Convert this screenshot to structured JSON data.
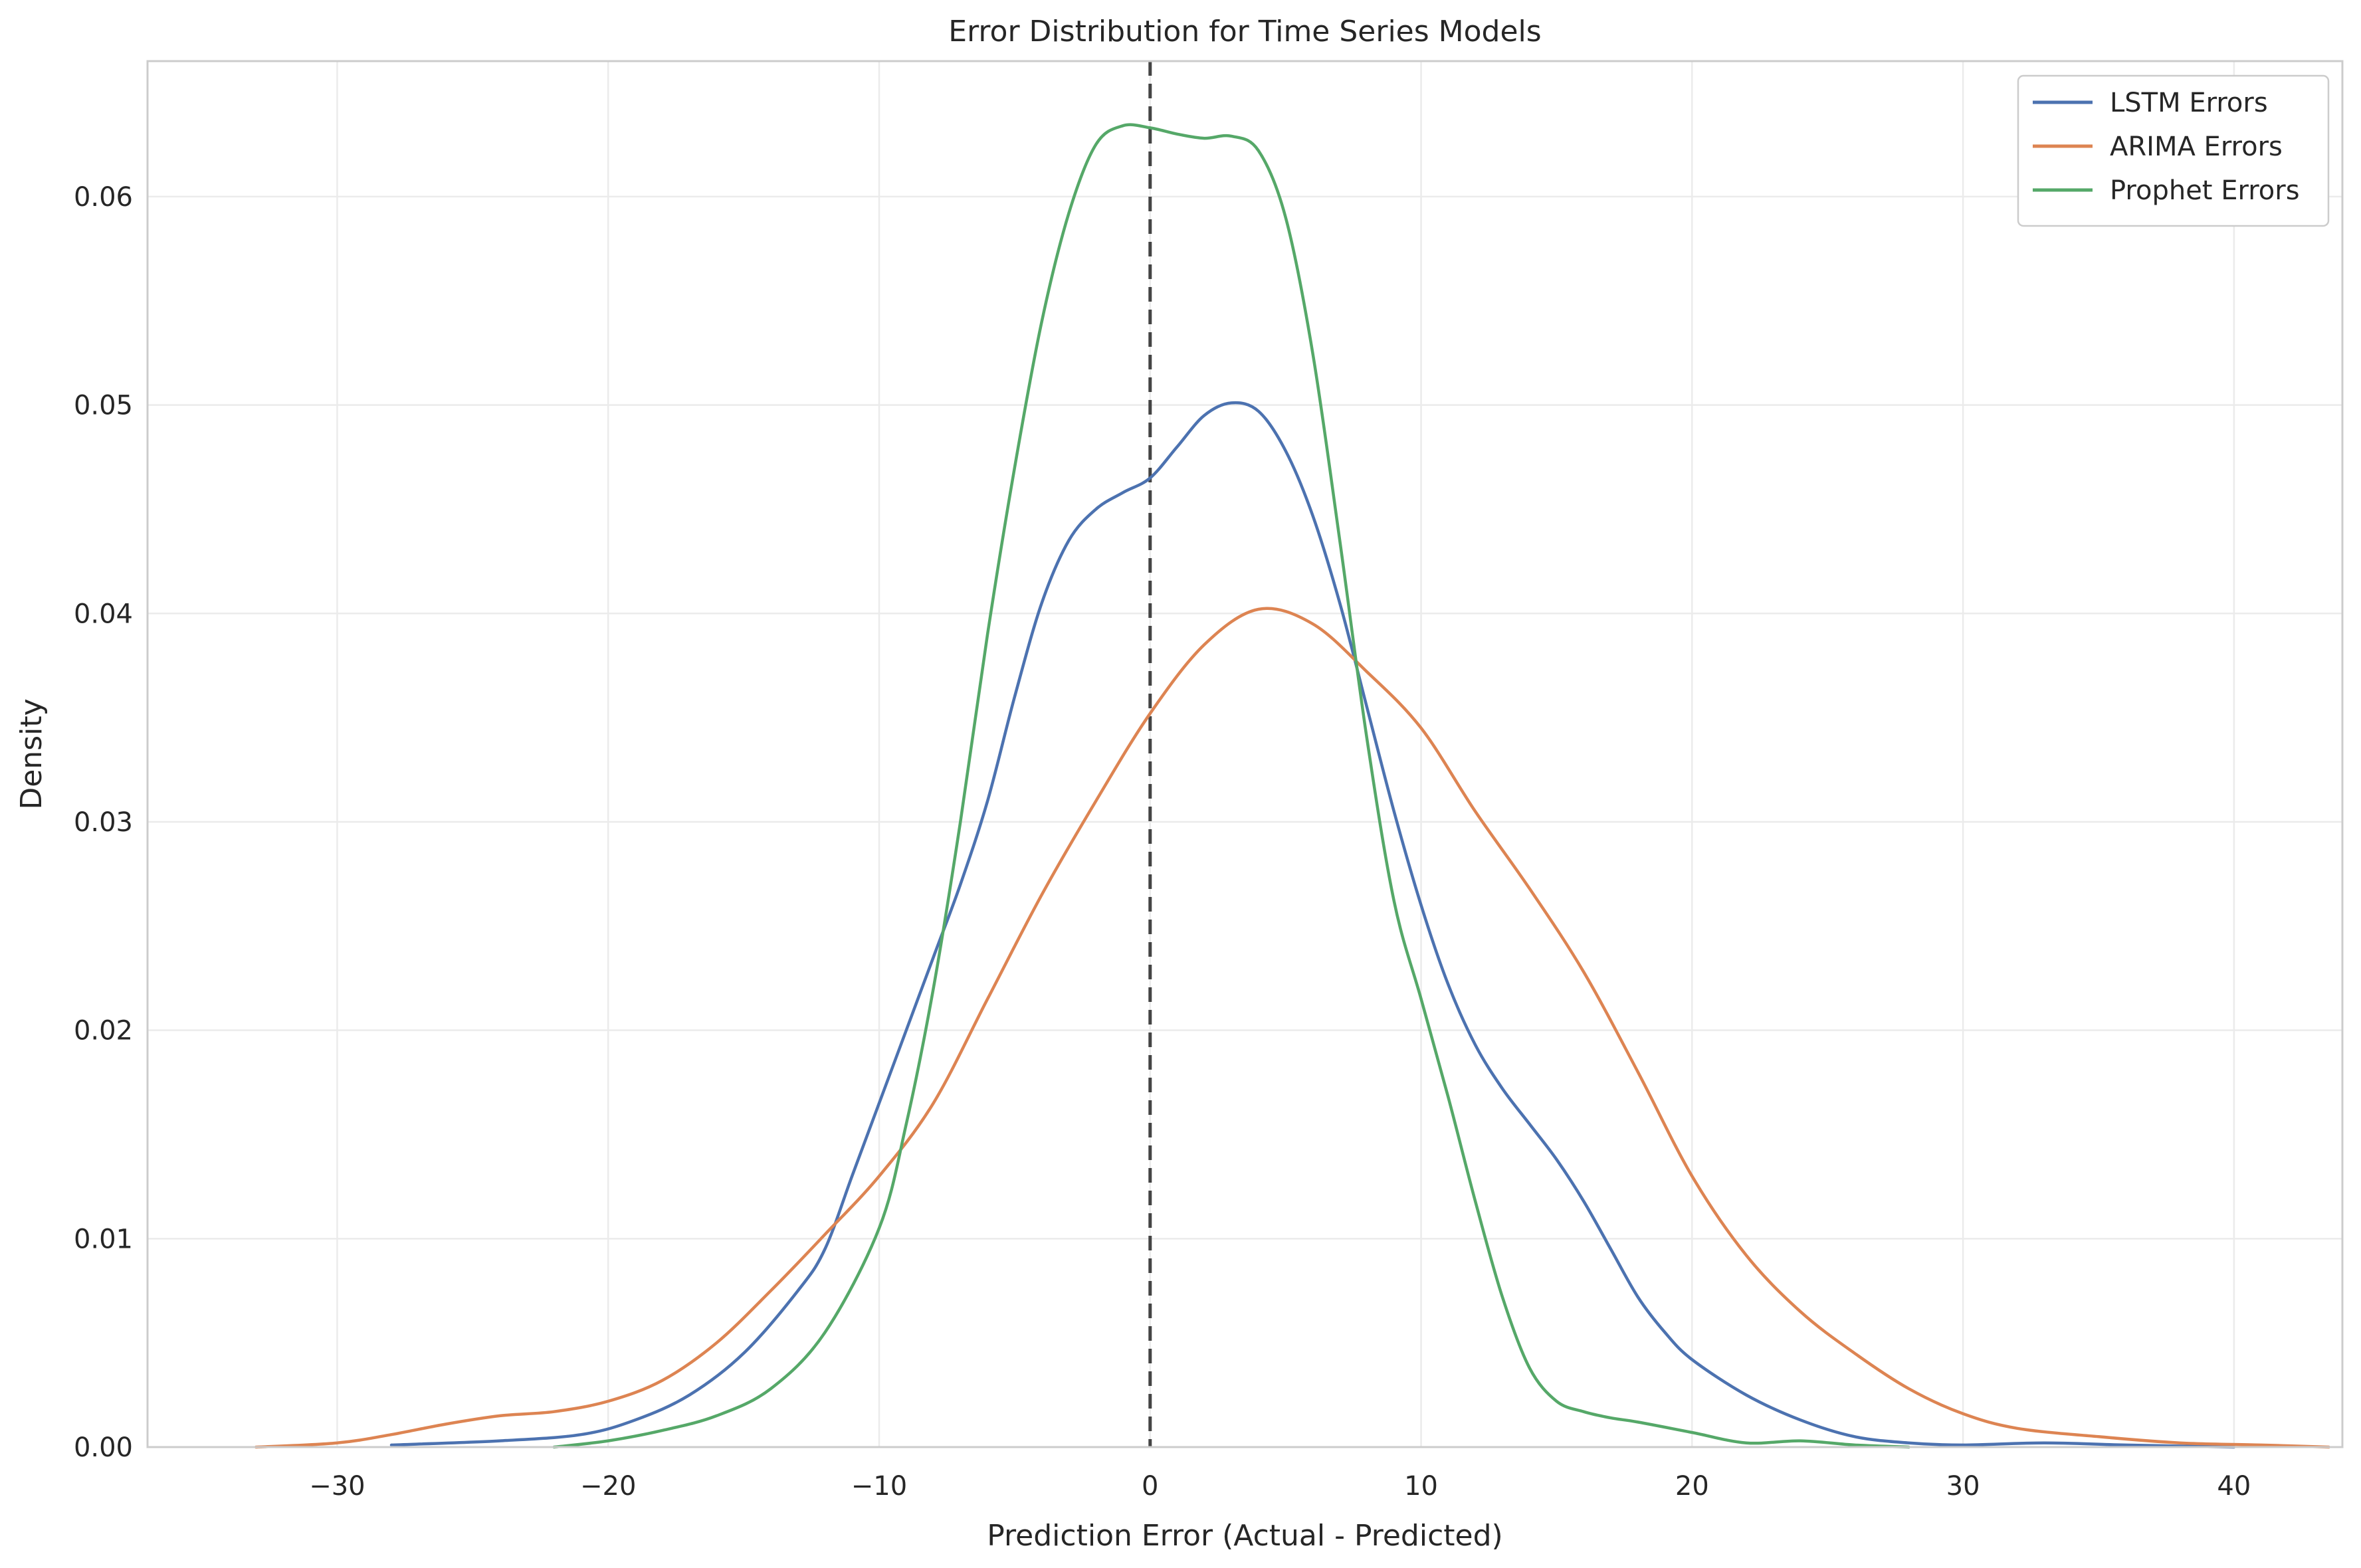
{
  "chart_data": {
    "type": "line",
    "title": "Error Distribution for Time Series Models",
    "xlabel": "Prediction Error (Actual - Predicted)",
    "ylabel": "Density",
    "xlim": [
      -37,
      44
    ],
    "ylim": [
      0,
      0.0665
    ],
    "xticks": [
      -30,
      -20,
      -10,
      0,
      10,
      20,
      30,
      40
    ],
    "xtick_labels": [
      "−30",
      "−20",
      "−10",
      "0",
      "10",
      "20",
      "30",
      "40"
    ],
    "yticks": [
      0,
      0.01,
      0.02,
      0.03,
      0.04,
      0.05,
      0.06
    ],
    "ytick_labels": [
      "0.00",
      "0.01",
      "0.02",
      "0.03",
      "0.04",
      "0.05",
      "0.06"
    ],
    "grid": true,
    "legend_position": "top-right",
    "reference_line": {
      "x": 0,
      "style": "dashed",
      "color": "#444444"
    },
    "series": [
      {
        "name": "LSTM Errors",
        "color": "#4c72b0",
        "points": [
          [
            -28,
            0.0001
          ],
          [
            -24,
            0.0003
          ],
          [
            -21,
            0.0006
          ],
          [
            -19,
            0.0013
          ],
          [
            -17,
            0.0025
          ],
          [
            -15,
            0.0045
          ],
          [
            -13,
            0.0075
          ],
          [
            -12,
            0.0095
          ],
          [
            -11,
            0.013
          ],
          [
            -10,
            0.0165
          ],
          [
            -9,
            0.02
          ],
          [
            -8,
            0.0235
          ],
          [
            -7,
            0.027
          ],
          [
            -6,
            0.031
          ],
          [
            -5,
            0.036
          ],
          [
            -4,
            0.0405
          ],
          [
            -3,
            0.0435
          ],
          [
            -2,
            0.045
          ],
          [
            -1,
            0.0458
          ],
          [
            0,
            0.0465
          ],
          [
            1,
            0.048
          ],
          [
            2,
            0.0495
          ],
          [
            3,
            0.0501
          ],
          [
            4,
            0.0497
          ],
          [
            5,
            0.0478
          ],
          [
            6,
            0.0447
          ],
          [
            7,
            0.0405
          ],
          [
            8,
            0.0355
          ],
          [
            9,
            0.0305
          ],
          [
            10,
            0.026
          ],
          [
            11,
            0.0222
          ],
          [
            12,
            0.0193
          ],
          [
            13,
            0.0172
          ],
          [
            14,
            0.0155
          ],
          [
            15,
            0.0138
          ],
          [
            16,
            0.0118
          ],
          [
            17,
            0.0095
          ],
          [
            18,
            0.0072
          ],
          [
            19,
            0.0055
          ],
          [
            20,
            0.0042
          ],
          [
            22,
            0.0025
          ],
          [
            24,
            0.0013
          ],
          [
            26,
            0.0005
          ],
          [
            28,
            0.0002
          ],
          [
            30,
            0.0001
          ],
          [
            33,
            0.0002
          ],
          [
            36,
            0.0001
          ],
          [
            40,
            0.0
          ]
        ]
      },
      {
        "name": "ARIMA Errors",
        "color": "#dd8452",
        "points": [
          [
            -33,
            0.0
          ],
          [
            -30,
            0.0002
          ],
          [
            -28,
            0.0006
          ],
          [
            -26,
            0.0011
          ],
          [
            -24,
            0.0015
          ],
          [
            -22,
            0.0017
          ],
          [
            -20,
            0.0022
          ],
          [
            -18,
            0.0032
          ],
          [
            -16,
            0.005
          ],
          [
            -14,
            0.0075
          ],
          [
            -12,
            0.0102
          ],
          [
            -10,
            0.013
          ],
          [
            -8,
            0.0165
          ],
          [
            -6,
            0.0215
          ],
          [
            -4,
            0.0265
          ],
          [
            -2,
            0.031
          ],
          [
            0,
            0.0352
          ],
          [
            2,
            0.0385
          ],
          [
            4,
            0.0402
          ],
          [
            6,
            0.0395
          ],
          [
            8,
            0.0372
          ],
          [
            10,
            0.0345
          ],
          [
            12,
            0.0305
          ],
          [
            14,
            0.0268
          ],
          [
            16,
            0.0228
          ],
          [
            18,
            0.018
          ],
          [
            20,
            0.013
          ],
          [
            22,
            0.0092
          ],
          [
            24,
            0.0065
          ],
          [
            26,
            0.0045
          ],
          [
            28,
            0.0028
          ],
          [
            30,
            0.0016
          ],
          [
            32,
            0.0009
          ],
          [
            35,
            0.0005
          ],
          [
            38,
            0.0002
          ],
          [
            41,
            0.0001
          ],
          [
            43.5,
            0.0
          ]
        ]
      },
      {
        "name": "Prophet Errors",
        "color": "#55a868",
        "points": [
          [
            -22,
            0.0
          ],
          [
            -20,
            0.0003
          ],
          [
            -18,
            0.0008
          ],
          [
            -16,
            0.0015
          ],
          [
            -14,
            0.0028
          ],
          [
            -12,
            0.0055
          ],
          [
            -10,
            0.0105
          ],
          [
            -9,
            0.0155
          ],
          [
            -8,
            0.022
          ],
          [
            -7,
            0.03
          ],
          [
            -6,
            0.039
          ],
          [
            -5,
            0.047
          ],
          [
            -4,
            0.054
          ],
          [
            -3,
            0.0592
          ],
          [
            -2,
            0.0625
          ],
          [
            -1,
            0.0634
          ],
          [
            0,
            0.0633
          ],
          [
            1,
            0.063
          ],
          [
            2,
            0.0628
          ],
          [
            3,
            0.0629
          ],
          [
            4,
            0.0622
          ],
          [
            5,
            0.059
          ],
          [
            6,
            0.0525
          ],
          [
            7,
            0.0435
          ],
          [
            8,
            0.034
          ],
          [
            9,
            0.0262
          ],
          [
            10,
            0.0215
          ],
          [
            11,
            0.0168
          ],
          [
            12,
            0.0118
          ],
          [
            13,
            0.0072
          ],
          [
            14,
            0.0038
          ],
          [
            15,
            0.0022
          ],
          [
            16,
            0.0017
          ],
          [
            17,
            0.0014
          ],
          [
            18,
            0.0012
          ],
          [
            20,
            0.0007
          ],
          [
            22,
            0.0002
          ],
          [
            24,
            0.0003
          ],
          [
            26,
            0.0001
          ],
          [
            28,
            0.0
          ]
        ]
      }
    ]
  }
}
